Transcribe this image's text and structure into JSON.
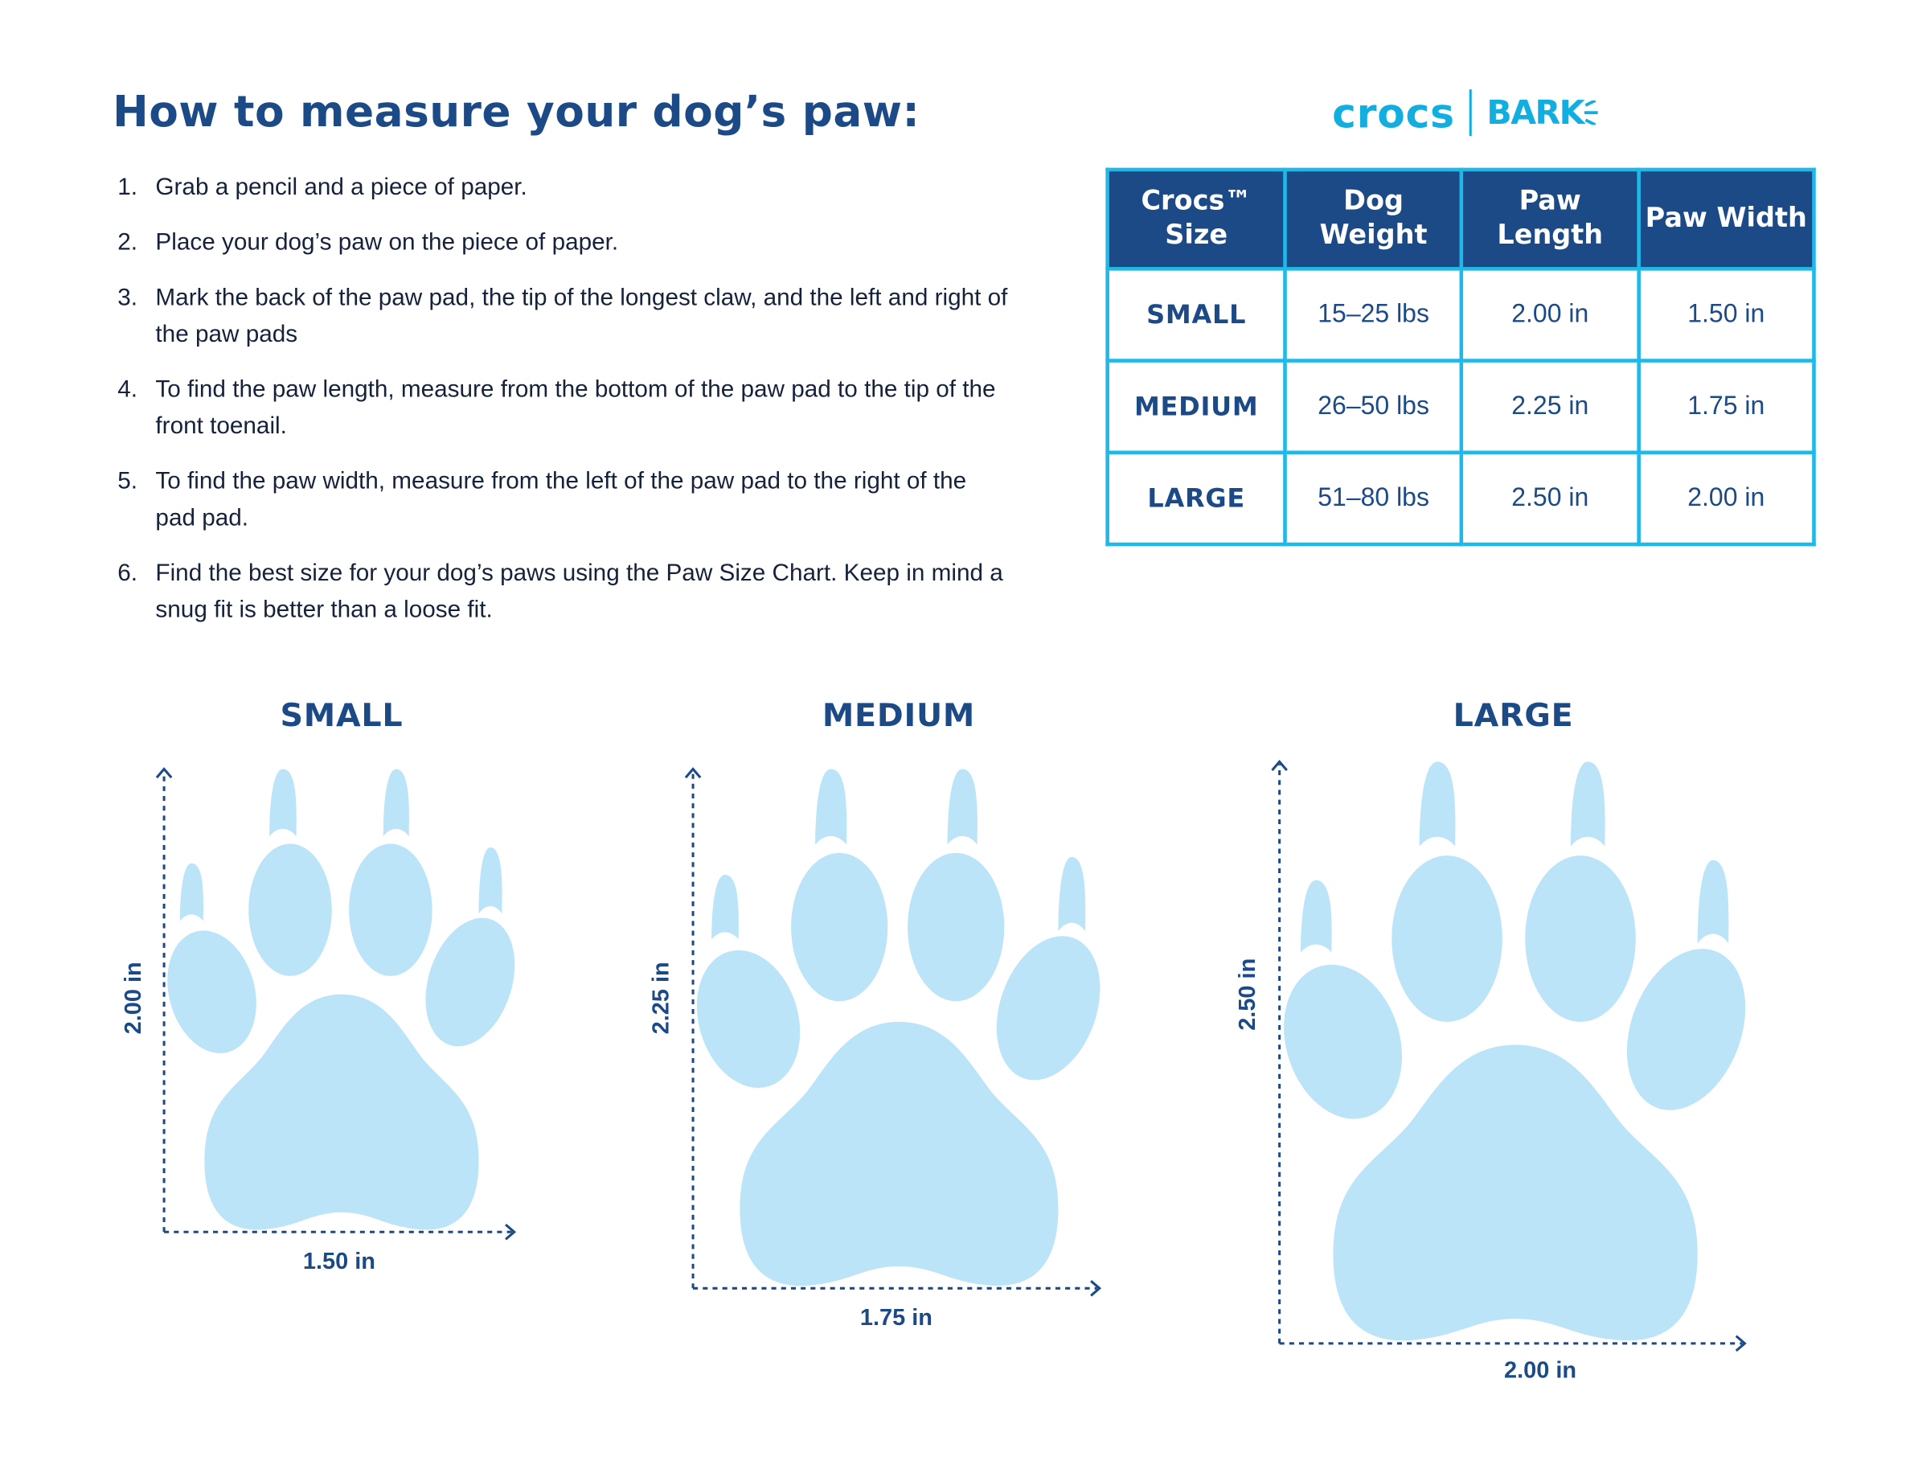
{
  "title": "How to measure your dog’s paw:",
  "steps": [
    {
      "num": "1.",
      "text": "Grab a pencil and a piece of paper."
    },
    {
      "num": "2.",
      "text": "Place your dog’s paw on the piece of paper."
    },
    {
      "num": "3.",
      "text": "Mark the back of the paw pad, the tip of the longest claw, and the left and right of the paw pads"
    },
    {
      "num": "4.",
      "text": "To find the paw length, measure from the bottom of the paw pad to the tip of the front toenail."
    },
    {
      "num": "5.",
      "text": "To find the paw width, measure from the left of the paw pad to the right of the pad pad."
    },
    {
      "num": "6.",
      "text": "Find the best size for your dog’s paws using the Paw Size Chart. Keep in mind a snug fit is better than a loose fit."
    }
  ],
  "logo": {
    "brand": "crocs",
    "partner": "BARK"
  },
  "table": {
    "headers": [
      "Crocs™ Size",
      "Dog Weight",
      "Paw Length",
      "Paw Width"
    ],
    "rows": [
      [
        "SMALL",
        "15–25 lbs",
        "2.00 in",
        "1.50 in"
      ],
      [
        "MEDIUM",
        "26–50 lbs",
        "2.25 in",
        "1.75 in"
      ],
      [
        "LARGE",
        "51–80 lbs",
        "2.50 in",
        "2.00 in"
      ]
    ]
  },
  "paws": [
    {
      "label": "SMALL",
      "length": "2.00 in",
      "width": "1.50 in"
    },
    {
      "label": "MEDIUM",
      "length": "2.25 in",
      "width": "1.75 in"
    },
    {
      "label": "LARGE",
      "length": "2.50 in",
      "width": "2.00 in"
    }
  ],
  "colors": {
    "navy": "#1b4a87",
    "cyan": "#1fb8e8",
    "paw": "#bce4f8"
  }
}
